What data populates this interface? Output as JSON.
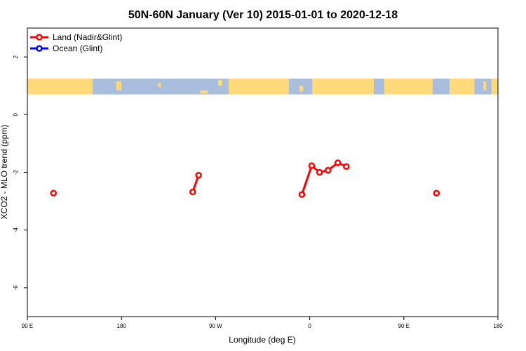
{
  "chart_data": {
    "type": "line",
    "title": "50N-60N January (Ver 10)   2015-01-01 to 2020-12-18",
    "xlabel": "Longitude (deg E)",
    "ylabel": "XCO2 - MLO trend (ppm)",
    "xlim": [
      90,
      450
    ],
    "ylim": [
      -7,
      3
    ],
    "x_ticks": [
      {
        "value": 90,
        "label": "90 E"
      },
      {
        "value": 162,
        "label": "180"
      },
      {
        "value": 234,
        "label": "90 W"
      },
      {
        "value": 306,
        "label": "0"
      },
      {
        "value": 378,
        "label": "90 E"
      },
      {
        "value": 450,
        "label": "180"
      }
    ],
    "y_ticks": [
      {
        "value": 2,
        "label": "2"
      },
      {
        "value": 0,
        "label": "0"
      },
      {
        "value": -2,
        "label": "-2"
      },
      {
        "value": -4,
        "label": "-4"
      },
      {
        "value": -6,
        "label": "-6"
      }
    ],
    "legend": {
      "position": "top-left",
      "entries": [
        {
          "label": "Land (Nadir&Glint)",
          "color": "#ff0000"
        },
        {
          "label": "Ocean (Glint)",
          "color": "#0000ff"
        }
      ]
    },
    "map_strip": {
      "y_range": [
        0.7,
        1.25
      ],
      "ocean_color": "#a8bedc",
      "land_color": "#ffd97a"
    },
    "series": [
      {
        "name": "Land (Nadir&Glint)",
        "color": "#ff0000",
        "segments": [
          [
            [
              110,
              -2.72
            ]
          ],
          [
            [
              216.5,
              -2.68
            ],
            [
              221,
              -2.1
            ]
          ],
          [
            [
              300,
              -2.77
            ],
            [
              307.5,
              -1.77
            ],
            [
              313.5,
              -2.0
            ],
            [
              320,
              -1.93
            ],
            [
              327.5,
              -1.67
            ],
            [
              334,
              -1.8
            ]
          ],
          [
            [
              403,
              -2.72
            ]
          ]
        ]
      },
      {
        "name": "Ocean (Glint)",
        "color": "#0000ff",
        "segments": []
      }
    ]
  }
}
